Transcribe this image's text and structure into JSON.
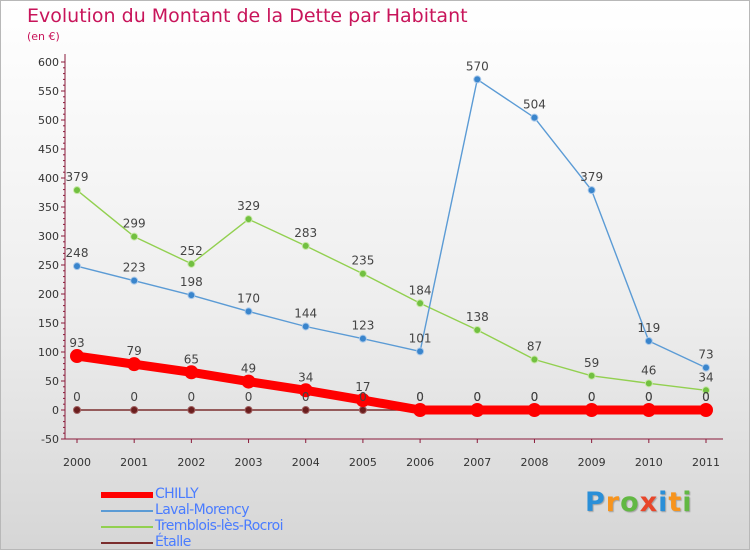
{
  "header": {
    "title": "Evolution du Montant de la Dette par Habitant",
    "subtitle": "(en €)"
  },
  "logo": {
    "letters": [
      "P",
      "r",
      "o",
      "x",
      "i",
      "t",
      "i"
    ],
    "colors": [
      "#2a8fd8",
      "#f7941d",
      "#62b843",
      "#e8462a",
      "#2a8fd8",
      "#f7941d",
      "#62b843"
    ]
  },
  "chart_data": {
    "type": "line",
    "title": "Evolution du Montant de la Dette par Habitant",
    "subtitle": "(en €)",
    "xlabel": "",
    "ylabel": "",
    "categories": [
      "2000",
      "2001",
      "2002",
      "2003",
      "2004",
      "2005",
      "2006",
      "2007",
      "2008",
      "2009",
      "2010",
      "2011"
    ],
    "ylim": [
      -50,
      600
    ],
    "yticks": [
      -50,
      0,
      50,
      100,
      150,
      200,
      250,
      300,
      350,
      400,
      450,
      500,
      550,
      600
    ],
    "grid": false,
    "legend_position": "bottom-left",
    "series": [
      {
        "name": "CHILLY",
        "color": "#ff0000",
        "values": [
          93,
          79,
          65,
          49,
          34,
          17,
          0,
          0,
          0,
          0,
          0,
          0
        ]
      },
      {
        "name": "Laval-Morency",
        "color": "#5b9bd5",
        "values": [
          248,
          223,
          198,
          170,
          144,
          123,
          101,
          570,
          504,
          379,
          119,
          73
        ]
      },
      {
        "name": "Tremblois-lès-Rocroi",
        "color": "#92d050",
        "values": [
          379,
          299,
          252,
          329,
          283,
          235,
          184,
          138,
          87,
          59,
          46,
          34
        ]
      },
      {
        "name": "Étalle",
        "color": "#7b2e2e",
        "values": [
          0,
          0,
          0,
          0,
          0,
          0,
          0,
          0,
          0,
          0,
          0,
          0
        ]
      }
    ]
  }
}
